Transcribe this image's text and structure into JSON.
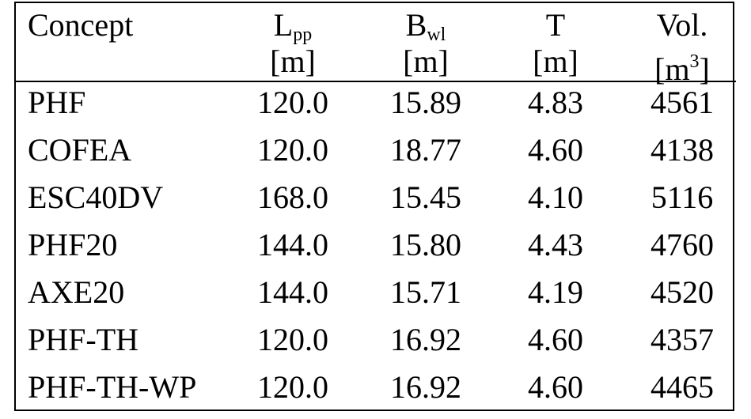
{
  "table": {
    "header": [
      {
        "name": "Concept"
      },
      {
        "name": "L",
        "sub": "pp",
        "unit": "[m]"
      },
      {
        "name": "B",
        "sub": "wl",
        "unit": "[m]"
      },
      {
        "name": "T",
        "unit": "[m]"
      },
      {
        "name": "Vol.",
        "unit": "[m",
        "unit_sup": "3",
        "unit_end": "]"
      }
    ],
    "rows": [
      [
        "PHF",
        "120.0",
        "15.89",
        "4.83",
        "4561"
      ],
      [
        "COFEA",
        "120.0",
        "18.77",
        "4.60",
        "4138"
      ],
      [
        "ESC40DV",
        "168.0",
        "15.45",
        "4.10",
        "5116"
      ],
      [
        "PHF20",
        "144.0",
        "15.80",
        "4.43",
        "4760"
      ],
      [
        "AXE20",
        "144.0",
        "15.71",
        "4.19",
        "4520"
      ],
      [
        "PHF-TH",
        "120.0",
        "16.92",
        "4.60",
        "4357"
      ],
      [
        "PHF-TH-WP",
        "120.0",
        "16.92",
        "4.60",
        "4465"
      ]
    ]
  }
}
